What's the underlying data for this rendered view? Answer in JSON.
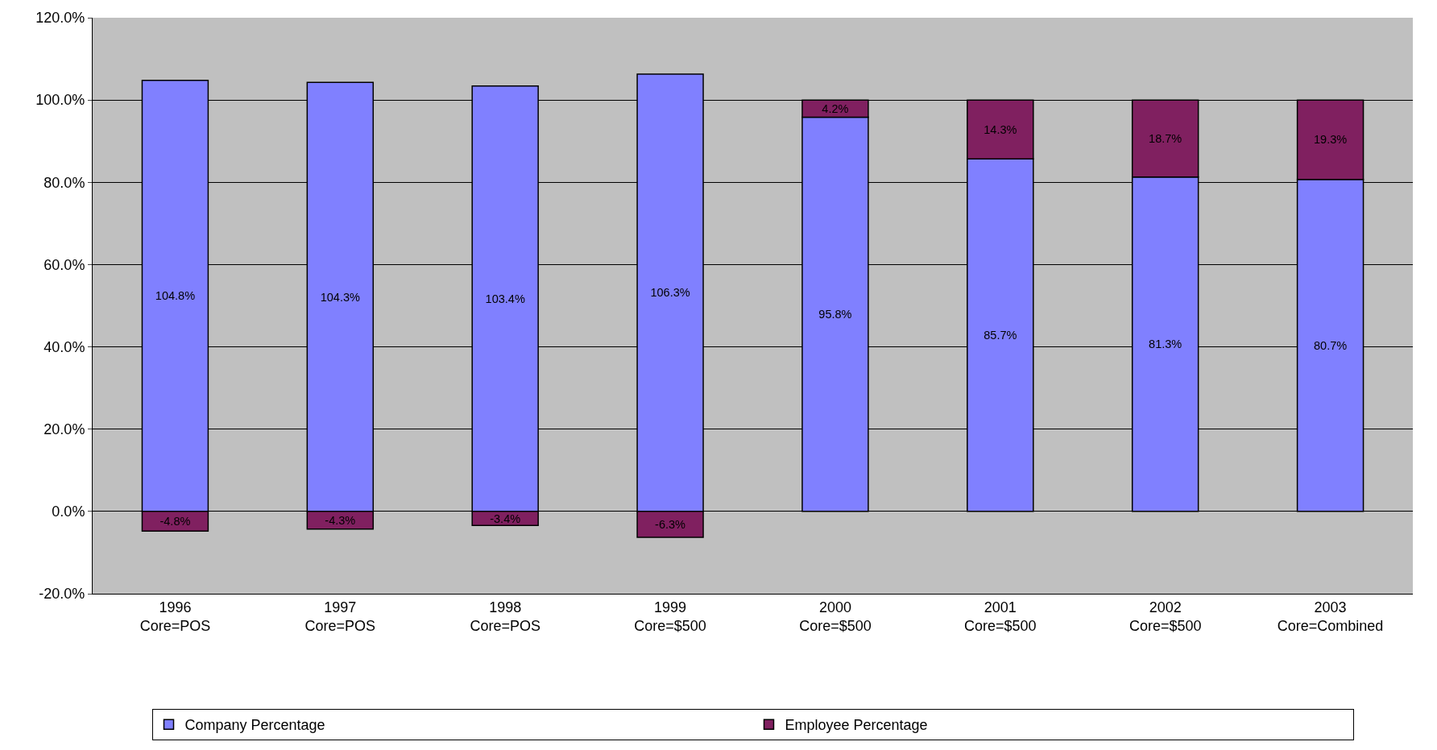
{
  "chart_data": {
    "type": "bar",
    "stacked": true,
    "categories": [
      "1996\nCore=POS",
      "1997\nCore=POS",
      "1998\nCore=POS",
      "1999\nCore=$500",
      "2000\nCore=$500",
      "2001\nCore=$500",
      "2002\nCore=$500",
      "2003\nCore=Combined"
    ],
    "series": [
      {
        "name": "Company Percentage",
        "color": "#8080ff",
        "values": [
          104.8,
          104.3,
          103.4,
          106.3,
          95.8,
          85.7,
          81.3,
          80.7
        ],
        "value_labels": [
          "104.8%",
          "104.3%",
          "103.4%",
          "106.3%",
          "95.8%",
          "85.7%",
          "81.3%",
          "80.7%"
        ]
      },
      {
        "name": "Employee Percentage",
        "color": "#802060",
        "values": [
          -4.8,
          -4.3,
          -3.4,
          -6.3,
          4.2,
          14.3,
          18.7,
          19.3
        ],
        "value_labels": [
          "-4.8%",
          "-4.3%",
          "-3.4%",
          "-6.3%",
          "4.2%",
          "14.3%",
          "18.7%",
          "19.3%"
        ]
      }
    ],
    "ylim": [
      -20,
      120
    ],
    "yticks": [
      {
        "value": -20,
        "label": "-20.0%"
      },
      {
        "value": 0,
        "label": "0.0%"
      },
      {
        "value": 20,
        "label": "20.0%"
      },
      {
        "value": 40,
        "label": "40.0%"
      },
      {
        "value": 60,
        "label": "60.0%"
      },
      {
        "value": 80,
        "label": "80.0%"
      },
      {
        "value": 100,
        "label": "100.0%"
      },
      {
        "value": 120,
        "label": "120.0%"
      }
    ],
    "grid": "y",
    "legend": "bottom"
  }
}
